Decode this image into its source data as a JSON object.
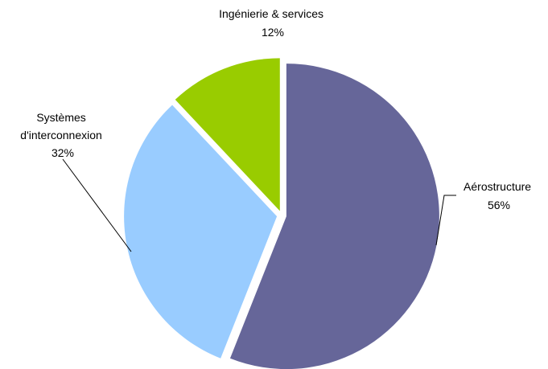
{
  "chart_data": {
    "type": "pie",
    "title": "",
    "slices": [
      {
        "name": "Aérostructure",
        "label_lines": [
          "Aérostructure"
        ],
        "value": 56,
        "value_label": "56%",
        "color": "#666699"
      },
      {
        "name": "Systèmes d'interconnexion",
        "label_lines": [
          "Systèmes",
          "d'interconnexion"
        ],
        "value": 32,
        "value_label": "32%",
        "color": "#99CCFF"
      },
      {
        "name": "Ingénierie & services",
        "label_lines": [
          "Ingénierie & services"
        ],
        "value": 12,
        "value_label": "12%",
        "color": "#99CC00"
      }
    ],
    "start_angle_deg": 0,
    "direction": "clockwise",
    "exploded": true,
    "label_placement": "outside with leader lines"
  }
}
